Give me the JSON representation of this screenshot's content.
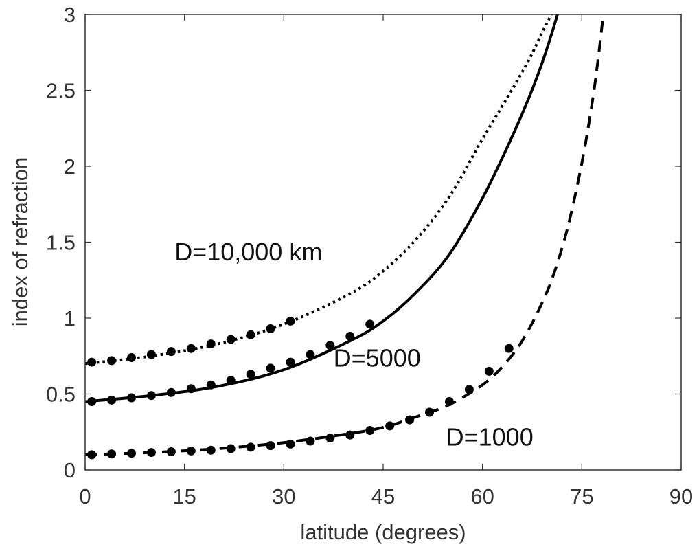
{
  "chart_data": {
    "type": "line",
    "title": "",
    "xlabel": "latitude (degrees)",
    "ylabel": "index of refraction",
    "xlim": [
      0,
      90
    ],
    "ylim": [
      0,
      3
    ],
    "xticks": [
      0,
      15,
      30,
      45,
      60,
      75,
      90
    ],
    "yticks": [
      0,
      0.5,
      1,
      1.5,
      2,
      2.5,
      3
    ],
    "ytick_labels": [
      "0",
      "0.5",
      "1",
      "1.5",
      "2",
      "2.5",
      "3"
    ],
    "grid": false,
    "legend": "none",
    "annotations": [
      {
        "text": "D=10,000 km",
        "x": 13.5,
        "y": 1.38
      },
      {
        "text": "D=5000",
        "x": 37.5,
        "y": 0.68
      },
      {
        "text": "D=1000",
        "x": 54.5,
        "y": 0.16
      }
    ],
    "series": [
      {
        "line_style": "dotted",
        "x": [
          0,
          10,
          20,
          30,
          40,
          45,
          50,
          55,
          60,
          64,
          67,
          69,
          70.5,
          72
        ],
        "y": [
          0.7,
          0.75,
          0.83,
          0.96,
          1.16,
          1.31,
          1.52,
          1.8,
          2.18,
          2.47,
          2.7,
          2.88,
          3.01,
          3.15
        ]
      },
      {
        "line_style": "solid",
        "x": [
          0,
          10,
          20,
          30,
          40,
          45,
          50,
          55,
          60,
          64,
          67,
          69,
          70.5,
          72
        ],
        "y": [
          0.45,
          0.49,
          0.55,
          0.66,
          0.85,
          0.98,
          1.17,
          1.42,
          1.79,
          2.15,
          2.45,
          2.68,
          2.88,
          3.1
        ]
      },
      {
        "line_style": "dashed",
        "x": [
          0,
          10,
          20,
          30,
          40,
          45,
          50,
          55,
          60,
          63,
          66,
          69,
          71,
          73,
          75,
          76.5,
          77.5,
          78.5
        ],
        "y": [
          0.1,
          0.115,
          0.14,
          0.18,
          0.24,
          0.28,
          0.35,
          0.43,
          0.56,
          0.68,
          0.85,
          1.1,
          1.32,
          1.62,
          2.02,
          2.4,
          2.72,
          3.1
        ]
      },
      {
        "line_style": "markers",
        "x": [
          1,
          4,
          7,
          10,
          13,
          16,
          19,
          22,
          25,
          28,
          31
        ],
        "y": [
          0.71,
          0.72,
          0.74,
          0.76,
          0.78,
          0.8,
          0.83,
          0.86,
          0.89,
          0.93,
          0.98
        ]
      },
      {
        "line_style": "markers",
        "x": [
          1,
          4,
          7,
          10,
          13,
          16,
          19,
          22,
          25,
          28,
          31,
          34,
          37,
          40,
          43
        ],
        "y": [
          0.45,
          0.46,
          0.475,
          0.49,
          0.51,
          0.535,
          0.56,
          0.59,
          0.63,
          0.67,
          0.71,
          0.76,
          0.82,
          0.88,
          0.96
        ]
      },
      {
        "line_style": "markers",
        "x": [
          1,
          4,
          7,
          10,
          13,
          16,
          19,
          22,
          25,
          28,
          31,
          34,
          37,
          40,
          43,
          46,
          49,
          52,
          55,
          58,
          61,
          64
        ],
        "y": [
          0.1,
          0.105,
          0.11,
          0.115,
          0.12,
          0.125,
          0.13,
          0.14,
          0.15,
          0.16,
          0.17,
          0.19,
          0.21,
          0.23,
          0.26,
          0.29,
          0.33,
          0.38,
          0.45,
          0.53,
          0.65,
          0.8
        ]
      }
    ]
  }
}
